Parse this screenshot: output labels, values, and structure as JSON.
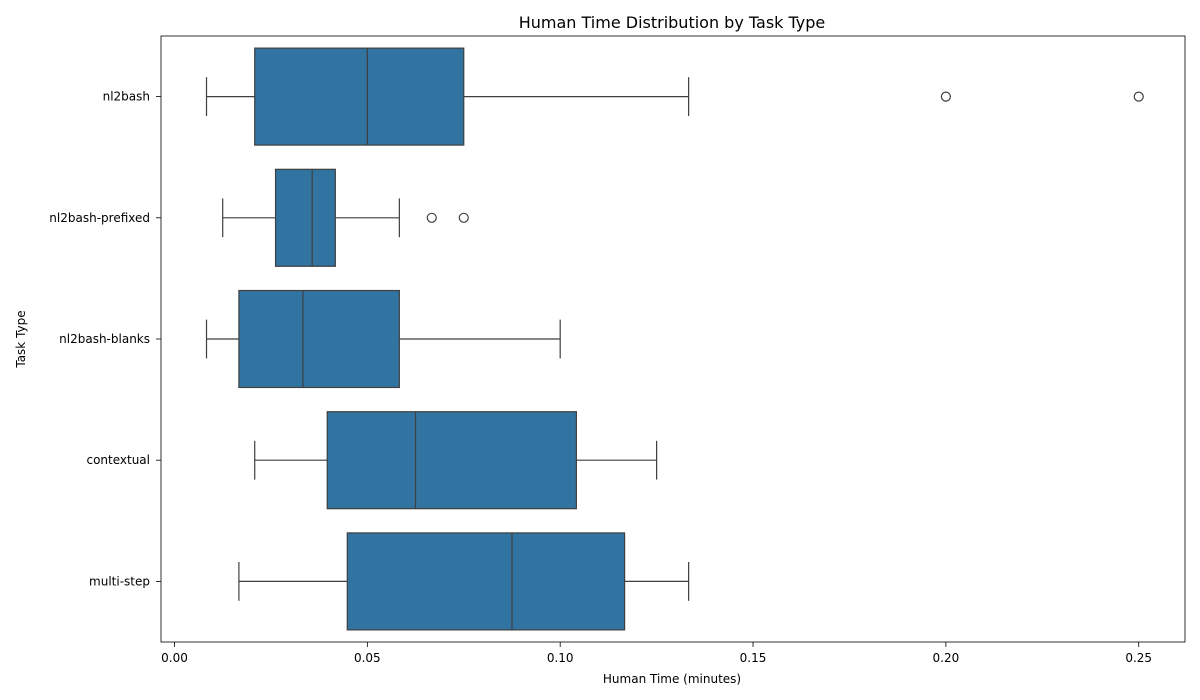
{
  "chart_data": {
    "type": "boxplot",
    "orientation": "horizontal",
    "title": "Human Time Distribution by Task Type",
    "xlabel": "Human Time (minutes)",
    "ylabel": "Task Type",
    "xlim": [
      -0.0035,
      0.262
    ],
    "xticks": [
      0.0,
      0.05,
      0.1,
      0.15,
      0.2,
      0.25
    ],
    "xtick_labels": [
      "0.00",
      "0.05",
      "0.10",
      "0.15",
      "0.20",
      "0.25"
    ],
    "grid": false,
    "box_color": "#3274a1",
    "line_color": "#3f3f3f",
    "categories": [
      "nl2bash",
      "nl2bash-prefixed",
      "nl2bash-blanks",
      "contextual",
      "multi-step"
    ],
    "boxes": [
      {
        "category": "nl2bash",
        "whisker_low": 0.0083,
        "q1": 0.0208,
        "median": 0.05,
        "q3": 0.075,
        "whisker_high": 0.1333,
        "outliers": [
          0.2,
          0.25
        ]
      },
      {
        "category": "nl2bash-prefixed",
        "whisker_low": 0.0125,
        "q1": 0.0262,
        "median": 0.0357,
        "q3": 0.0417,
        "whisker_high": 0.0583,
        "outliers": [
          0.0667,
          0.075
        ]
      },
      {
        "category": "nl2bash-blanks",
        "whisker_low": 0.0083,
        "q1": 0.0167,
        "median": 0.0333,
        "q3": 0.0583,
        "whisker_high": 0.1,
        "outliers": []
      },
      {
        "category": "contextual",
        "whisker_low": 0.0208,
        "q1": 0.0396,
        "median": 0.0625,
        "q3": 0.1042,
        "whisker_high": 0.125,
        "outliers": []
      },
      {
        "category": "multi-step",
        "whisker_low": 0.0167,
        "q1": 0.0448,
        "median": 0.0875,
        "q3": 0.1167,
        "whisker_high": 0.1333,
        "outliers": []
      }
    ]
  }
}
